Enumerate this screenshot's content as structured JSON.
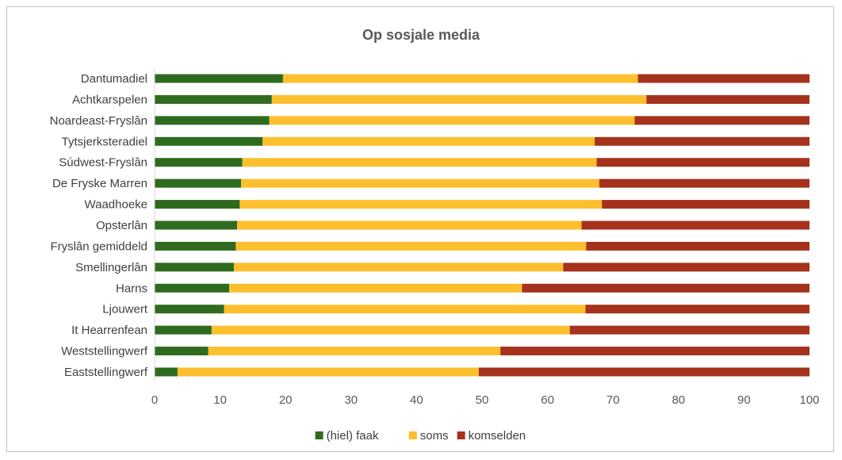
{
  "chart_data": {
    "type": "bar",
    "orientation": "horizontal",
    "stacked": true,
    "title": "Op sosjale media",
    "categories": [
      "Dantumadiel",
      "Achtkarspelen",
      "Noardeast-Fryslân",
      "Tytsjerksteradiel",
      "Súdwest-Fryslân",
      "De Fryske Marren",
      "Waadhoeke",
      "Opsterlân",
      "Fryslân gemiddeld",
      "Smellingerlân",
      "Harns",
      "Ljouwert",
      "It Hearrenfean ",
      "Weststellingwerf",
      "Eaststellingwerf"
    ],
    "series": [
      {
        "name": "(hiel) faak",
        "color": "#2e6b1f",
        "values": [
          19.6,
          17.9,
          17.5,
          16.5,
          13.4,
          13.2,
          13.0,
          12.6,
          12.4,
          12.1,
          11.4,
          10.6,
          8.7,
          8.2,
          3.5
        ]
      },
      {
        "name": "soms",
        "color": "#fcbf2e",
        "values": [
          54.2,
          57.2,
          55.8,
          50.7,
          54.1,
          54.7,
          55.3,
          52.6,
          53.5,
          50.3,
          44.7,
          55.2,
          54.7,
          44.6,
          46.0
        ]
      },
      {
        "name": "komselden",
        "color": "#a5321c",
        "values": [
          26.2,
          24.9,
          26.7,
          32.8,
          32.5,
          32.1,
          31.7,
          34.8,
          34.1,
          37.6,
          43.9,
          34.2,
          36.6,
          47.2,
          50.5
        ]
      }
    ],
    "xlim": [
      0,
      100
    ],
    "xticks": [
      "0",
      "10",
      "20",
      "30",
      "40",
      "50",
      "60",
      "70",
      "80",
      "90",
      "100"
    ],
    "xlabel": "",
    "ylabel": "",
    "grid": false,
    "legend": "bottom"
  }
}
